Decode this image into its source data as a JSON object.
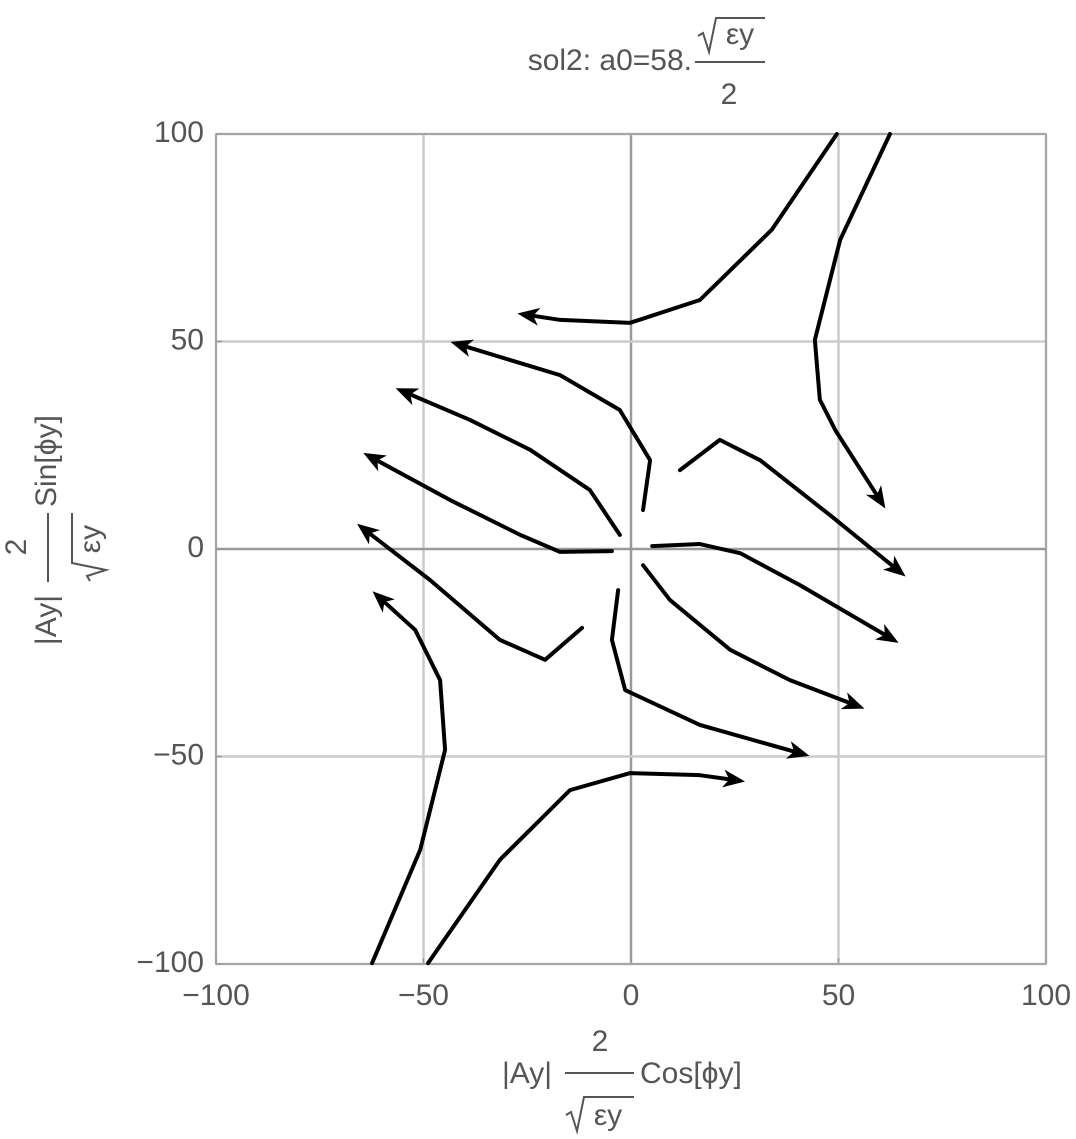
{
  "chart_data": {
    "type": "streamplot",
    "title": {
      "text": "sol2: a0=58.",
      "numerator_radicand": "εy",
      "denominator": "2"
    },
    "xlabel": {
      "prefix": "|Ay|",
      "numerator": "2",
      "denominator_radicand": "εy",
      "suffix": "Cos[ϕy]"
    },
    "ylabel": {
      "prefix": "|Ay|",
      "numerator": "2",
      "denominator_radicand": "εy",
      "suffix": "Sin[ϕy]"
    },
    "xlim": [
      -100,
      100
    ],
    "ylim": [
      -100,
      100
    ],
    "xticks": [
      {
        "value": -100,
        "label": "−100"
      },
      {
        "value": -50,
        "label": "−50"
      },
      0,
      50,
      100
    ],
    "yticks": [
      {
        "value": -100,
        "label": "−100"
      },
      {
        "value": -50,
        "label": "−50"
      },
      0,
      50,
      100
    ],
    "grid": true,
    "series": [
      {
        "color": "#000000",
        "x": [
          49.6,
          33.9,
          16.6,
          -0.2,
          -17,
          -25
        ],
        "y": [
          100,
          76.9,
          60,
          54.5,
          55.2,
          56.4
        ]
      },
      {
        "color": "#000000",
        "x": [
          62.4,
          50.4,
          44.3,
          45.5,
          49.2,
          60
        ],
        "y": [
          100,
          74.5,
          50.4,
          36,
          28.7,
          11.8
        ]
      },
      {
        "color": "#000000",
        "x": [
          2.9,
          4.6,
          -2.7,
          -17.1,
          -41.2
        ],
        "y": [
          9.4,
          21.4,
          33.5,
          41.9,
          49.2
        ]
      },
      {
        "color": "#000000",
        "x": [
          -2.7,
          -9.9,
          -24.3,
          -38.8,
          -54.5
        ],
        "y": [
          3.4,
          14.2,
          23.9,
          31.1,
          37.8
        ]
      },
      {
        "color": "#000000",
        "x": [
          -4.6,
          -17.1,
          -26.7,
          -43.6,
          -62.4
        ],
        "y": [
          -0.5,
          -0.7,
          3.4,
          11.8,
          22
        ]
      },
      {
        "color": "#000000",
        "x": [
          -11.8,
          -20.7,
          -31.6,
          -48.4,
          -64.1
        ],
        "y": [
          -19,
          -26.7,
          -21.9,
          -7.5,
          4.6
        ]
      },
      {
        "color": "#000000",
        "x": [
          -62.4,
          -50.8,
          -44.8,
          -46,
          -52,
          -60.5
        ],
        "y": [
          -99.8,
          -72.5,
          -48.4,
          -31.6,
          -19.5,
          -11.8
        ]
      },
      {
        "color": "#000000",
        "x": [
          -48.9,
          -31.6,
          -14.7,
          -0.2,
          16.6,
          25.1
        ],
        "y": [
          -99.8,
          -74.9,
          -58.1,
          -54,
          -54.5,
          -55.7
        ]
      },
      {
        "color": "#000000",
        "x": [
          -3.1,
          -4.6,
          -1.4,
          16.6,
          40.7
        ],
        "y": [
          -9.9,
          -21.9,
          -34,
          -42.4,
          -49.2
        ]
      },
      {
        "color": "#000000",
        "x": [
          2.9,
          9.4,
          23.9,
          38.3,
          54
        ],
        "y": [
          -3.9,
          -12.3,
          -24.3,
          -31.6,
          -37.6
        ]
      },
      {
        "color": "#000000",
        "x": [
          5.1,
          16.6,
          26.3,
          40.7,
          62.4
        ],
        "y": [
          0.7,
          1.2,
          -1,
          -8.7,
          -21.4
        ]
      },
      {
        "color": "#000000",
        "x": [
          11.8,
          21.4,
          31.1,
          47.9,
          64.3
        ],
        "y": [
          19,
          26.3,
          21.4,
          8.2,
          -5.1
        ]
      }
    ]
  }
}
